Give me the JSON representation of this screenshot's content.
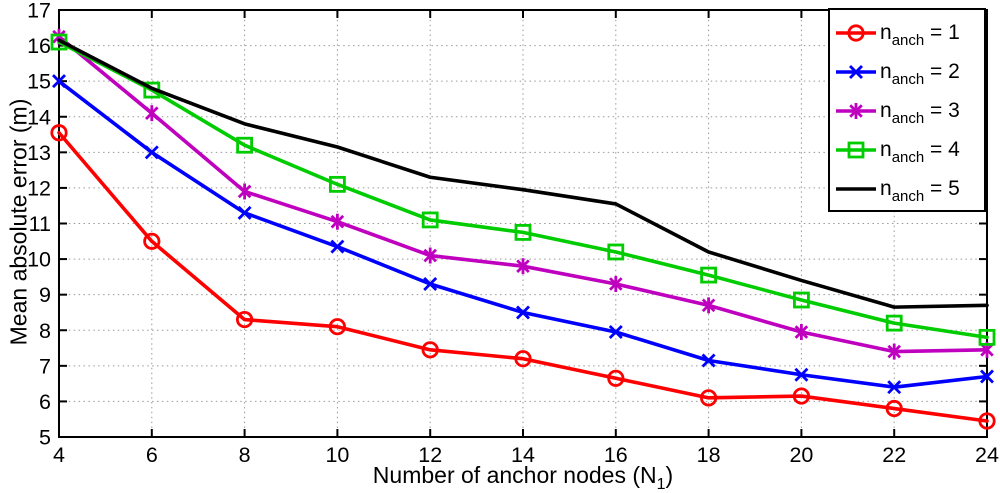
{
  "chart_data": {
    "type": "line",
    "title": "",
    "xlabel_parts": {
      "pre": "Number of anchor nodes (N",
      "sub": "1",
      "post": ")"
    },
    "ylabel": "Mean absolute error (m)",
    "x": [
      4,
      6,
      8,
      10,
      12,
      14,
      16,
      18,
      20,
      22,
      24
    ],
    "xlim": [
      4,
      24
    ],
    "ylim": [
      5,
      17
    ],
    "x_ticks": [
      4,
      6,
      8,
      10,
      12,
      14,
      16,
      18,
      20,
      22,
      24
    ],
    "y_ticks": [
      5,
      6,
      7,
      8,
      9,
      10,
      11,
      12,
      13,
      14,
      15,
      16,
      17
    ],
    "grid": "dotted",
    "grid_color": "#999999",
    "axis_color": "#000000",
    "legend_position": "top-right",
    "series": [
      {
        "name": "n_anch = 1",
        "label_base": "n",
        "label_sub": "anch",
        "label_rest": " = 1",
        "color": "#FF0000",
        "marker": "circle",
        "values": [
          13.55,
          10.5,
          8.3,
          8.1,
          7.45,
          7.2,
          6.65,
          6.1,
          6.15,
          5.8,
          5.45
        ]
      },
      {
        "name": "n_anch = 2",
        "label_base": "n",
        "label_sub": "anch",
        "label_rest": " = 2",
        "color": "#0000FF",
        "marker": "x",
        "values": [
          15.0,
          13.0,
          11.3,
          10.35,
          9.3,
          8.5,
          7.95,
          7.15,
          6.75,
          6.4,
          6.7
        ]
      },
      {
        "name": "n_anch = 3",
        "label_base": "n",
        "label_sub": "anch",
        "label_rest": " = 3",
        "color": "#BF00BF",
        "marker": "asterisk",
        "values": [
          16.25,
          14.1,
          11.9,
          11.05,
          10.1,
          9.8,
          9.3,
          8.7,
          7.95,
          7.4,
          7.45
        ]
      },
      {
        "name": "n_anch = 4",
        "label_base": "n",
        "label_sub": "anch",
        "label_rest": " = 4",
        "color": "#00CC00",
        "marker": "square",
        "values": [
          16.1,
          14.75,
          13.2,
          12.1,
          11.1,
          10.75,
          10.2,
          9.55,
          8.85,
          8.2,
          7.8
        ]
      },
      {
        "name": "n_anch = 5",
        "label_base": "n",
        "label_sub": "anch",
        "label_rest": " = 5",
        "color": "#000000",
        "marker": "none",
        "values": [
          16.15,
          14.8,
          13.8,
          13.15,
          12.3,
          11.95,
          11.55,
          10.2,
          9.4,
          8.65,
          8.7
        ]
      }
    ]
  }
}
